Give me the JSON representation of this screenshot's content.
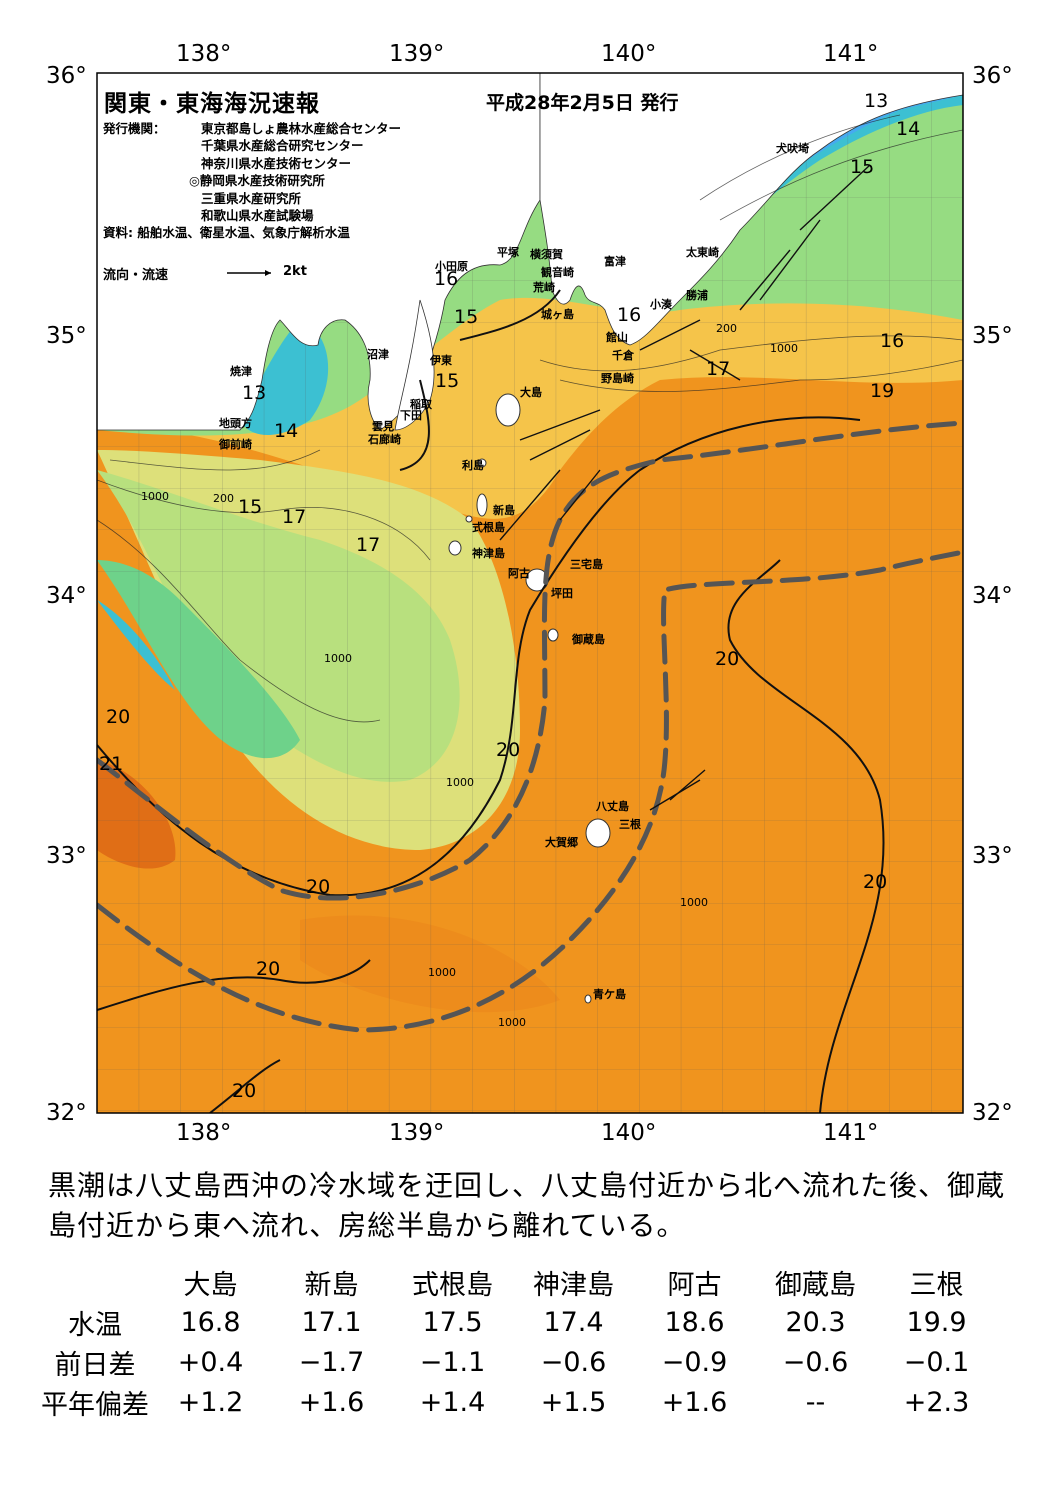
{
  "map": {
    "title": "関東・東海海況速報",
    "date": "平成28年2月5日 発行",
    "issuer_label": "発行機関：",
    "issuers": [
      "東京都島しょ農林水産総合センター",
      "千葉県水産総合研究センター",
      "神奈川県水産技術センター",
      "◎静岡県水産技術研究所",
      "三重県水産研究所",
      "和歌山県水産試験場"
    ],
    "source": "資料: 船舶水温、衛星水温、気象庁解析水温",
    "legend_label": "流向・流速",
    "legend_unit": "2kt",
    "lon_labels": [
      "138°",
      "139°",
      "140°",
      "141°"
    ],
    "lat_labels": [
      "36°",
      "35°",
      "34°",
      "33°",
      "32°"
    ],
    "places": [
      "犬吠埼",
      "太東崎",
      "勝浦",
      "小湊",
      "館山",
      "千倉",
      "野島崎",
      "富津",
      "観音崎",
      "荒崎",
      "城ヶ島",
      "横須賀",
      "平塚",
      "小田原",
      "伊東",
      "稲取",
      "下田",
      "雲見",
      "石廊崎",
      "沼津",
      "焼津",
      "地頭方",
      "御前崎",
      "大島",
      "利島",
      "新島",
      "式根島",
      "神津島",
      "阿古",
      "三宅島",
      "坪田",
      "御蔵島",
      "八丈島",
      "三根",
      "大賀郷",
      "青ケ島"
    ],
    "isotherms": [
      "13",
      "14",
      "15",
      "16",
      "17",
      "19",
      "20",
      "21"
    ],
    "depth_labels": [
      "200",
      "1000"
    ]
  },
  "summary": "黒潮は八丈島西沖の冷水域を迂回し、八丈島付近から北へ流れた後、御蔵島付近から東へ流れ、房総半島から離れている。",
  "table": {
    "stations": [
      "大島",
      "新島",
      "式根島",
      "神津島",
      "阿古",
      "御蔵島",
      "三根"
    ],
    "rows": [
      {
        "label": "水温",
        "values": [
          "16.8",
          "17.1",
          "17.5",
          "17.4",
          "18.6",
          "20.3",
          "19.9"
        ]
      },
      {
        "label": "前日差",
        "values": [
          "+0.4",
          "−1.7",
          "−1.1",
          "−0.6",
          "−0.9",
          "−0.6",
          "−0.1"
        ]
      },
      {
        "label": "平年偏差",
        "values": [
          "+1.2",
          "+1.6",
          "+1.4",
          "+1.5",
          "+1.6",
          "--",
          "+2.3"
        ]
      }
    ]
  },
  "colors": {
    "warm": "#f0941e",
    "warm_dark": "#e6781a",
    "mid": "#f5c44a",
    "yellow": "#e8e87a",
    "green": "#96dc82",
    "green2": "#5ed28a",
    "cold": "#3cc0d2",
    "colder": "#46aaf0",
    "land": "#ffffff"
  }
}
